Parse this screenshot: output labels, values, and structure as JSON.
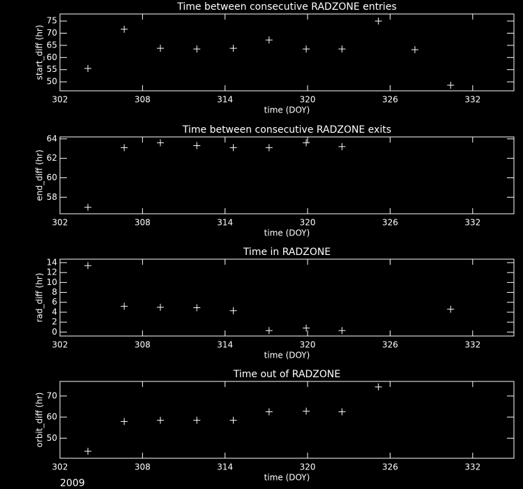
{
  "chart_data": [
    {
      "type": "scatter",
      "title": "Time between consecutive RADZONE entries",
      "x_label": "time (DOY)",
      "y_label": "start_diff (hr)",
      "color": "#ffffff",
      "x": [
        304.03,
        306.67,
        309.3,
        311.95,
        314.6,
        317.2,
        319.9,
        322.5,
        325.15,
        327.8,
        330.4
      ],
      "values": [
        55.5,
        71.6,
        63.8,
        63.5,
        63.8,
        67.2,
        63.5,
        63.5,
        75,
        63.2,
        48.6
      ],
      "xlim": [
        302,
        335
      ],
      "xticks": [
        302,
        308,
        314,
        320,
        326,
        332
      ],
      "ylim": [
        46.3,
        77.9
      ],
      "yticks": [
        50,
        55,
        60,
        65,
        70,
        75
      ]
    },
    {
      "type": "scatter",
      "title": "Time between consecutive RADZONE exits",
      "x_label": "time (DOY)",
      "y_label": "end_diff (hr)",
      "color": "#ffffff",
      "x": [
        304.03,
        306.67,
        309.3,
        311.95,
        314.6,
        317.2,
        319.9,
        322.5
      ],
      "values": [
        56.96,
        63.1,
        63.6,
        63.3,
        63.1,
        63.1,
        63.6,
        63.2
      ],
      "xlim": [
        302,
        335
      ],
      "xticks": [
        302,
        308,
        314,
        320,
        326,
        332
      ],
      "ylim": [
        56.3,
        64.2
      ],
      "yticks": [
        58,
        60,
        62,
        64
      ]
    },
    {
      "type": "scatter",
      "title": "Time in RADZONE",
      "x_label": "time (DOY)",
      "y_label": "rad_diff (hr)",
      "color": "#ffffff",
      "x": [
        304.03,
        306.67,
        309.3,
        311.95,
        314.6,
        317.2,
        319.9,
        322.5,
        330.4
      ],
      "values": [
        13.4,
        5.2,
        5.0,
        4.9,
        4.3,
        0.3,
        0.8,
        0.3,
        4.6
      ],
      "xlim": [
        302,
        335
      ],
      "xticks": [
        302,
        308,
        314,
        320,
        326,
        332
      ],
      "ylim": [
        -0.8,
        14.7
      ],
      "yticks": [
        0,
        2,
        4,
        6,
        8,
        10,
        12,
        14
      ]
    },
    {
      "type": "scatter",
      "title": "Time out of RADZONE",
      "x_label": "time (DOY)",
      "y_label": "orbit_diff (hr)",
      "color": "#ffffff",
      "x": [
        304.03,
        306.67,
        309.3,
        311.95,
        314.6,
        317.2,
        319.9,
        322.5,
        325.15
      ],
      "values": [
        43.8,
        57.9,
        58.5,
        58.5,
        58.5,
        62.5,
        62.8,
        62.5,
        74.3
      ],
      "xlim": [
        302,
        335
      ],
      "xticks": [
        302,
        308,
        314,
        320,
        326,
        332
      ],
      "ylim": [
        40.5,
        76.9
      ],
      "yticks": [
        50,
        60,
        70
      ]
    }
  ],
  "annotation": "2009"
}
